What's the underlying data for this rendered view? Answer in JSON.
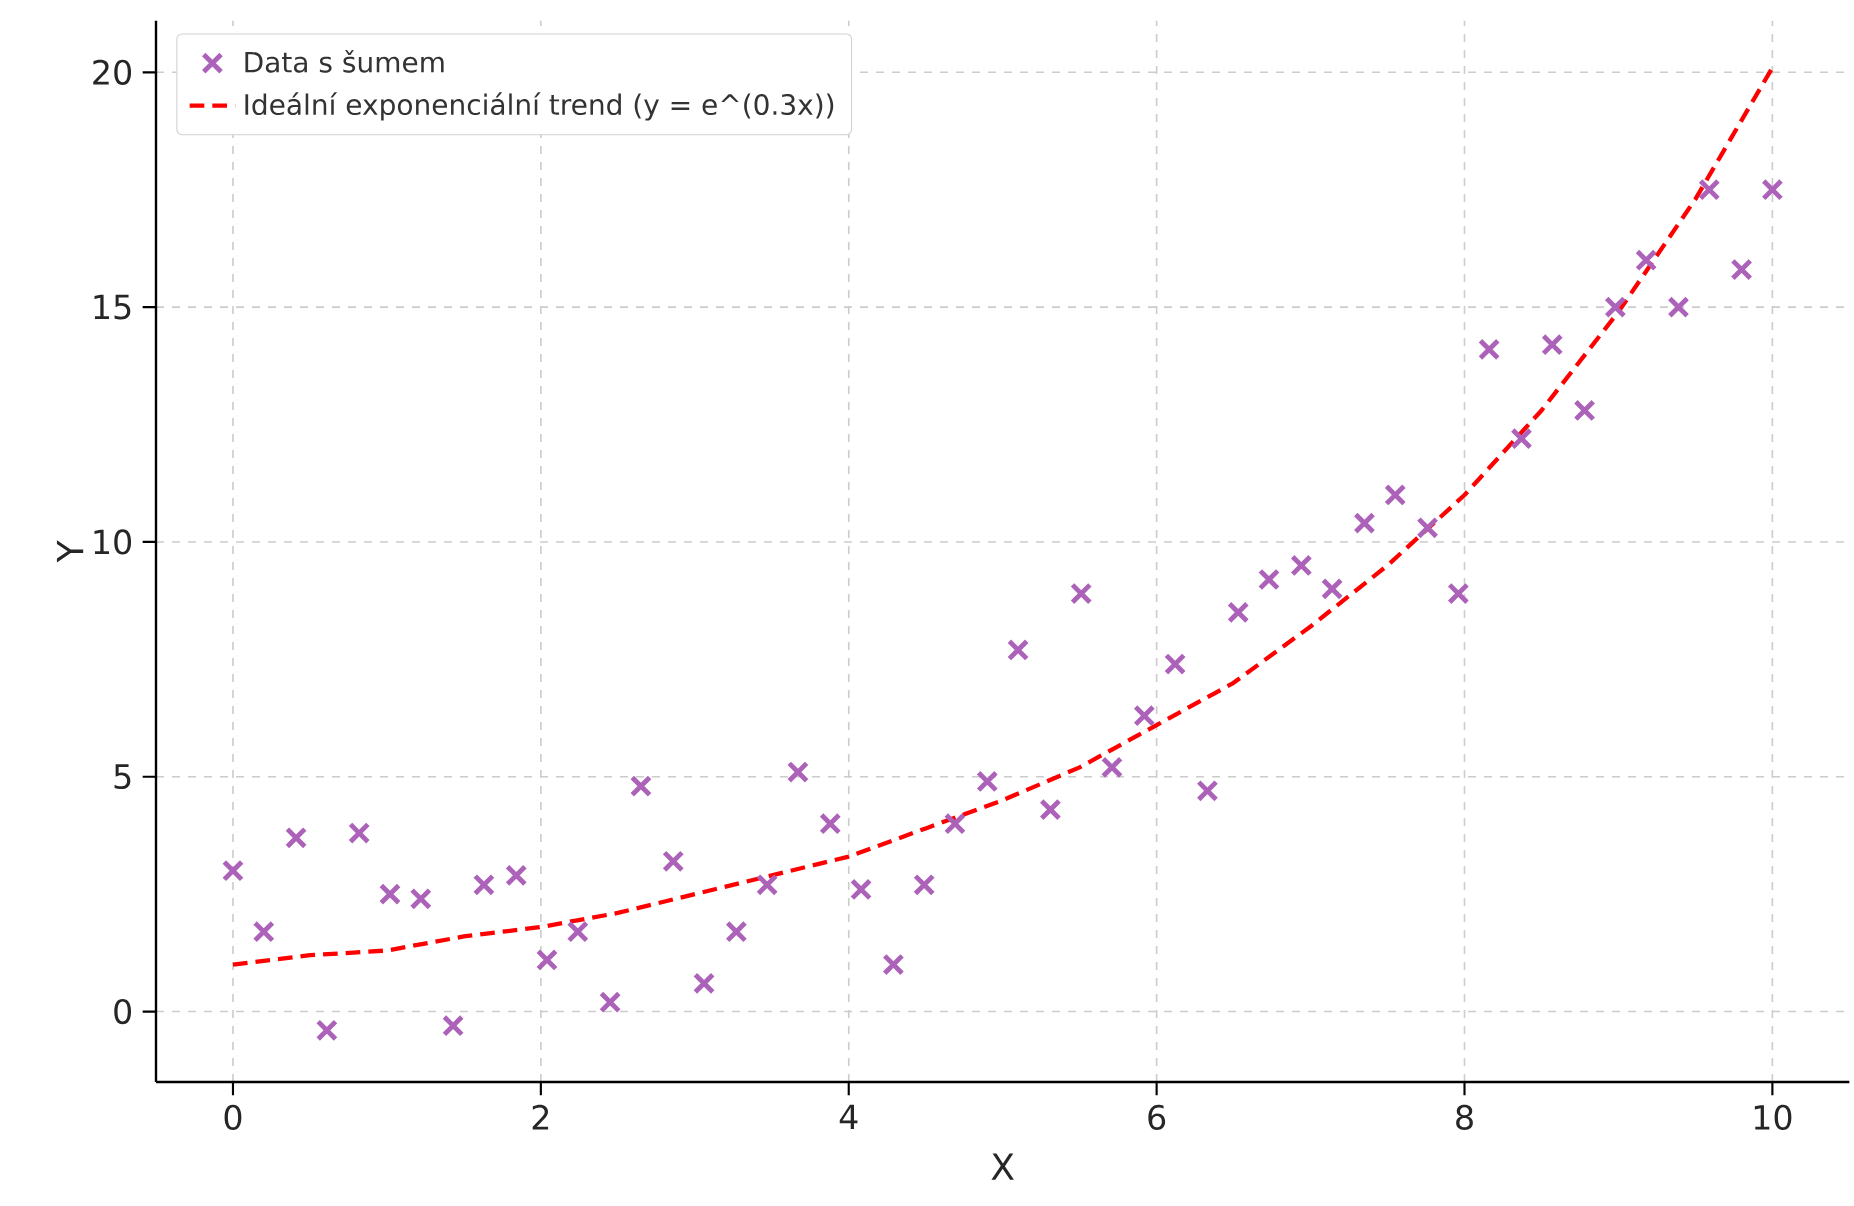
{
  "chart_data": {
    "type": "scatter",
    "xlabel": "X",
    "ylabel": "Y",
    "xlim": [
      -0.5,
      10.5
    ],
    "ylim": [
      -1.5,
      21.1
    ],
    "xticks": [
      0,
      2,
      4,
      6,
      8,
      10
    ],
    "yticks": [
      0,
      5,
      10,
      15,
      20
    ],
    "grid": true,
    "legend": "top left",
    "series": [
      {
        "name": "Data s šumem",
        "marker": "cross",
        "color": "#ad62b9",
        "x": [
          0,
          0.2,
          0.41,
          0.61,
          0.82,
          1.02,
          1.22,
          1.43,
          1.63,
          1.84,
          2.04,
          2.24,
          2.45,
          2.65,
          2.86,
          3.06,
          3.27,
          3.47,
          3.67,
          3.88,
          4.08,
          4.29,
          4.49,
          4.69,
          4.9,
          5.1,
          5.31,
          5.51,
          5.71,
          5.92,
          6.12,
          6.33,
          6.53,
          6.73,
          6.94,
          7.14,
          7.35,
          7.55,
          7.76,
          7.96,
          8.16,
          8.37,
          8.57,
          8.78,
          8.98,
          9.18,
          9.39,
          9.59,
          9.8,
          10
        ],
        "values": [
          3.0,
          1.7,
          3.7,
          -0.4,
          3.8,
          2.5,
          2.4,
          -0.3,
          2.7,
          2.9,
          1.1,
          1.7,
          0.2,
          4.8,
          3.2,
          0.6,
          1.7,
          2.7,
          5.1,
          4.0,
          2.6,
          1.0,
          2.7,
          4.0,
          4.9,
          7.7,
          4.3,
          8.9,
          5.2,
          6.3,
          7.4,
          4.7,
          8.5,
          9.2,
          9.5,
          9.0,
          10.4,
          11.0,
          10.3,
          8.9,
          14.1,
          12.2,
          14.2,
          12.8,
          15.0,
          16.0,
          15.0,
          17.5,
          15.8,
          17.5
        ]
      },
      {
        "name": "Ideální exponenciální trend (y = e^(0.3x))",
        "type": "line",
        "marker": "none",
        "line_style": "dashed",
        "color": "#ff0000",
        "x": [
          0,
          0.5,
          1,
          1.5,
          2,
          2.5,
          3,
          3.5,
          4,
          4.5,
          5,
          5.5,
          6,
          6.5,
          7,
          7.5,
          8,
          8.5,
          9,
          9.5,
          10
        ],
        "values": [
          1.0,
          1.2,
          1.3,
          1.6,
          1.8,
          2.1,
          2.5,
          2.9,
          3.3,
          3.9,
          4.5,
          5.2,
          6.1,
          7.0,
          8.2,
          9.5,
          11.0,
          12.8,
          14.9,
          17.3,
          20.1
        ]
      }
    ]
  }
}
